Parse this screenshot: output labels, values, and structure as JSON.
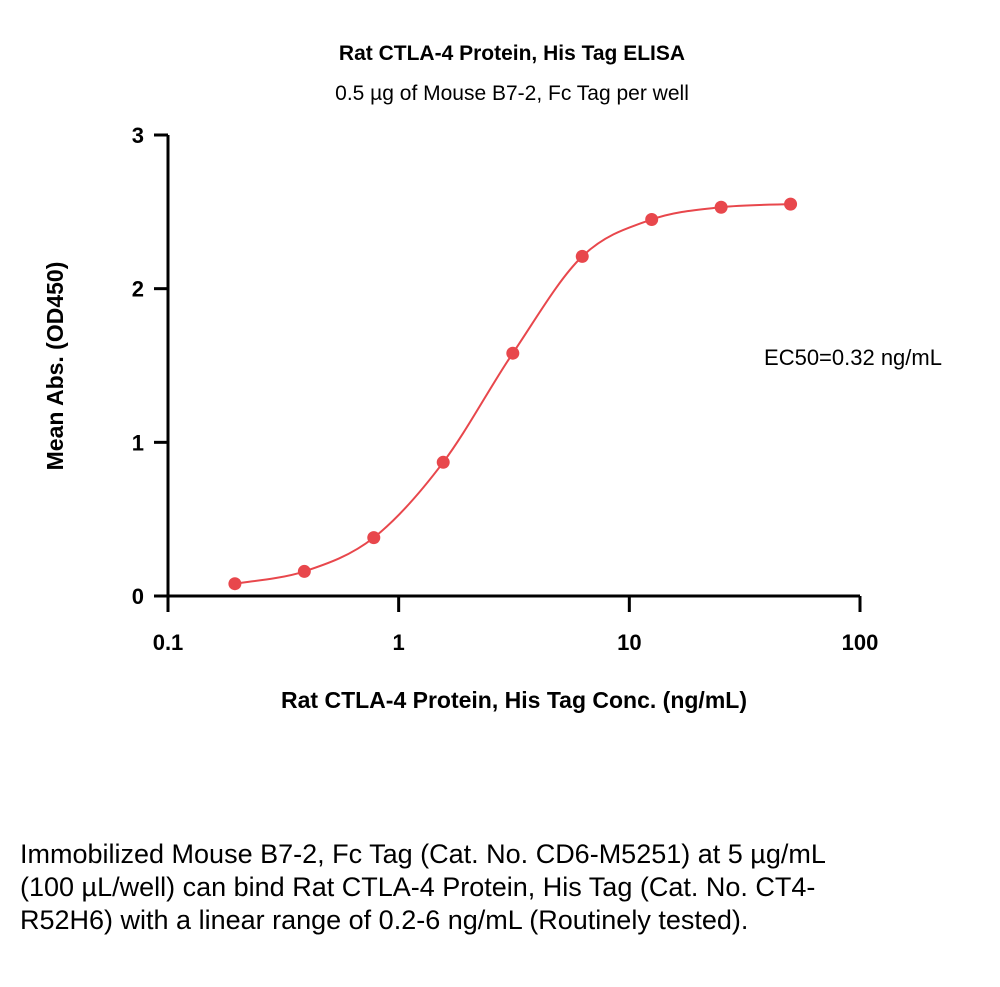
{
  "chart_data": {
    "type": "scatter",
    "title": "Rat CTLA-4 Protein, His Tag ELISA",
    "subtitle": "0.5 µg of Mouse B7-2, Fc Tag per well",
    "xlabel": "Rat CTLA-4 Protein, His Tag Conc. (ng/mL)",
    "ylabel": "Mean Abs. (OD450)",
    "xscale": "log",
    "xlim": [
      0.1,
      100
    ],
    "ylim": [
      0,
      3
    ],
    "x_ticks": [
      "0.1",
      "1",
      "10",
      "100"
    ],
    "y_ticks": [
      "0",
      "1",
      "2",
      "3"
    ],
    "grid": false,
    "series": [
      {
        "x": [
          0.195,
          0.39,
          0.78,
          1.56,
          3.125,
          6.25,
          12.5,
          25,
          50
        ],
        "y": [
          0.08,
          0.16,
          0.38,
          0.87,
          1.58,
          2.21,
          2.45,
          2.53,
          2.55
        ],
        "color": "#e8474c",
        "fit": "4PL"
      }
    ],
    "annotation": "EC50=0.32 ng/mL"
  },
  "caption": "Immobilized Mouse B7-2, Fc Tag (Cat. No. CD6-M5251) at 5 µg/mL (100 µL/well) can bind Rat CTLA-4 Protein, His Tag (Cat. No. CT4-R52H6) with a linear range of 0.2-6 ng/mL (Routinely tested)."
}
